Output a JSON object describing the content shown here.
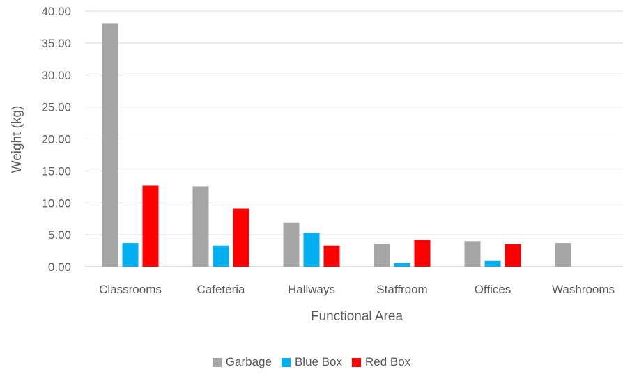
{
  "chart_data": {
    "type": "bar",
    "xlabel": "Functional Area",
    "ylabel": "Weight (kg)",
    "ylim": [
      0,
      40
    ],
    "ytick_step": 5,
    "ytick_decimals": 2,
    "grid": "horizontal",
    "legend_position": "bottom",
    "categories": [
      "Classrooms",
      "Cafeteria",
      "Hallways",
      "Staffroom",
      "Offices",
      "Washrooms"
    ],
    "series": [
      {
        "name": "Garbage",
        "color": "#a5a5a5",
        "values": [
          38.1,
          12.6,
          6.9,
          3.6,
          4.0,
          3.7
        ]
      },
      {
        "name": "Blue Box",
        "color": "#00b0f0",
        "values": [
          3.7,
          3.3,
          5.3,
          0.6,
          0.9,
          0.0
        ]
      },
      {
        "name": "Red Box",
        "color": "#ff0000",
        "values": [
          12.7,
          9.1,
          3.3,
          4.2,
          3.5,
          0.0
        ]
      }
    ]
  }
}
